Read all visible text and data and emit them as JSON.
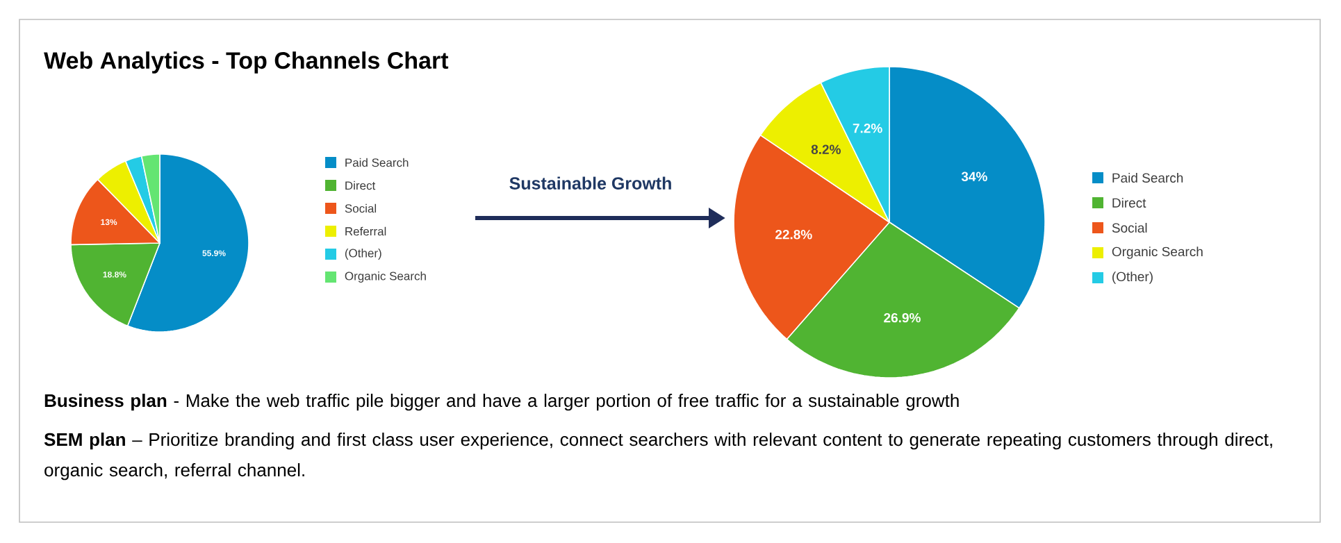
{
  "chart_data": [
    {
      "type": "pie",
      "title": "Web Analytics - Top Channels Chart",
      "categories": [
        "Paid Search",
        "Direct",
        "Social",
        "Referral",
        "(Other)",
        "Organic Search"
      ],
      "values": [
        55.9,
        18.8,
        13,
        6,
        3,
        3.3
      ],
      "colors": [
        "#058dc7",
        "#50b432",
        "#ed561b",
        "#edef00",
        "#24cbe5",
        "#64e572"
      ],
      "value_labels": [
        "55.9%",
        "18.8%",
        "13%",
        null,
        null,
        null
      ],
      "legend": "right",
      "annotations": [
        "Sustainable Growth"
      ]
    },
    {
      "type": "pie",
      "categories": [
        "Paid Search",
        "Direct",
        "Social",
        "Organic Search",
        "(Other)"
      ],
      "values": [
        34,
        26.9,
        22.8,
        8.2,
        7.2
      ],
      "colors": [
        "#058dc7",
        "#50b432",
        "#ed561b",
        "#edef00",
        "#24cbe5"
      ],
      "value_labels": [
        "34%",
        "26.9%",
        "22.8%",
        "8.2%",
        "7.2%"
      ],
      "legend": "right",
      "annotations": [
        "**Business plan** - Make the web traffic pile bigger and have a larger portion of free traffic for a sustainable growth",
        "**SEM plan** – Prioritize branding and first class user experience, connect searchers with relevant content to generate repeating customers through direct, organic search, referral channel."
      ]
    }
  ]
}
